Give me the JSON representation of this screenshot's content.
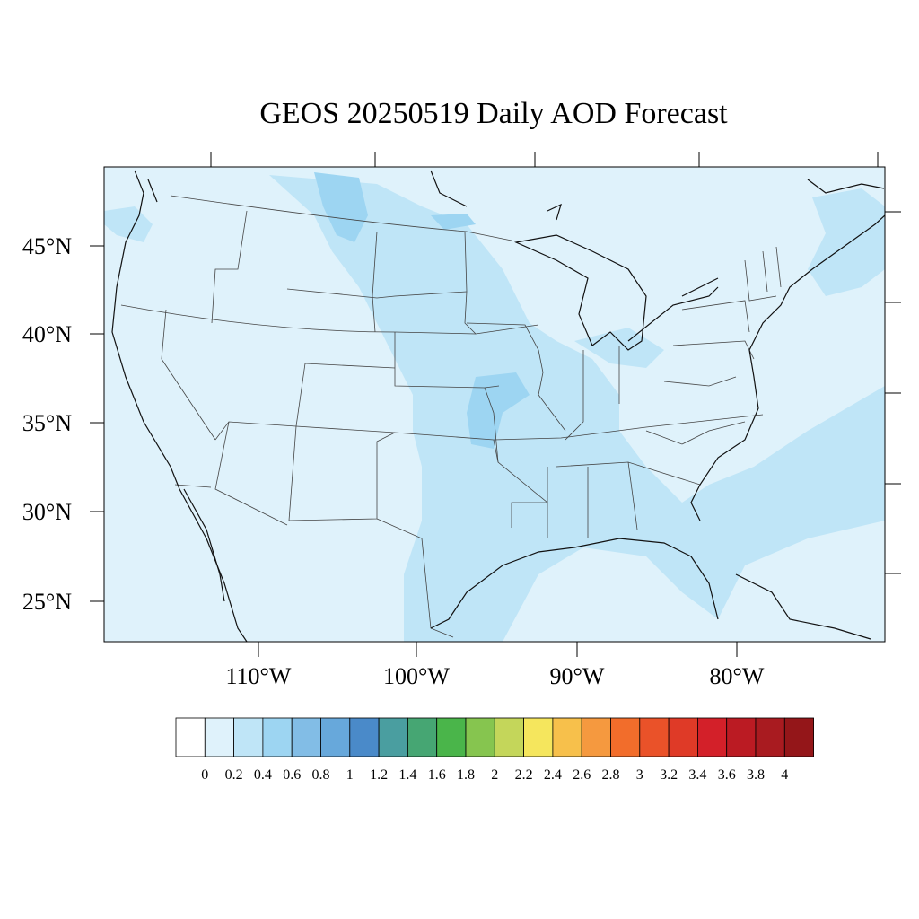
{
  "title": "GEOS 20250519 Daily AOD Forecast",
  "map": {
    "lat_labels": [
      "45°N",
      "40°N",
      "35°N",
      "30°N",
      "25°N"
    ],
    "lon_labels": [
      "110°W",
      "100°W",
      "90°W",
      "80°W"
    ],
    "background_color": "#dff2fb"
  },
  "colorbar": {
    "labels": [
      "0",
      "0.2",
      "0.4",
      "0.6",
      "0.8",
      "1",
      "1.2",
      "1.4",
      "1.6",
      "1.8",
      "2",
      "2.2",
      "2.4",
      "2.6",
      "2.8",
      "3",
      "3.2",
      "3.4",
      "3.6",
      "3.8",
      "4"
    ],
    "colors": [
      "#ffffff",
      "#dff2fb",
      "#bfe5f7",
      "#9dd5f2",
      "#82bde6",
      "#67a8db",
      "#4a8ac9",
      "#4a9ea0",
      "#46a673",
      "#4ab54a",
      "#86c54f",
      "#c4d65a",
      "#f5e65d",
      "#f7c04b",
      "#f5993f",
      "#f26d2b",
      "#ea5229",
      "#df3a27",
      "#d32029",
      "#bb1b23",
      "#a91b20",
      "#941619"
    ]
  }
}
